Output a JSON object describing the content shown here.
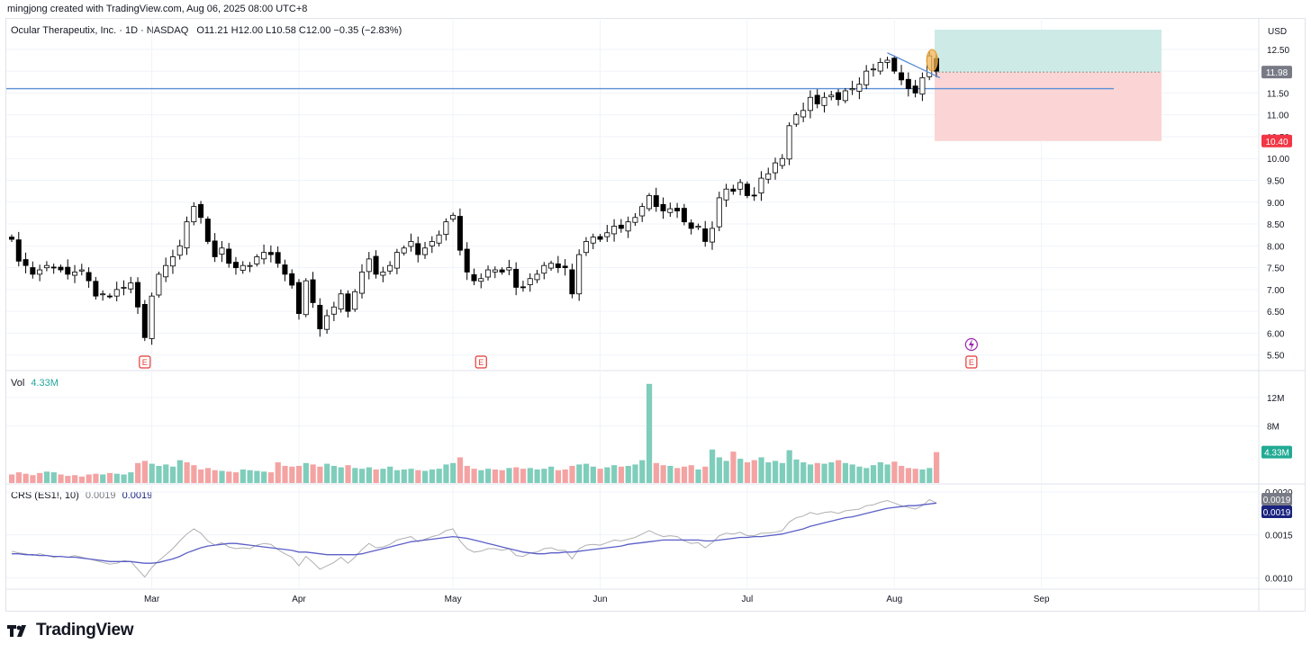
{
  "credit": "mingjong created with TradingView.com, Aug 06, 2025 08:00 UTC+8",
  "header": {
    "symbol": "Ocular Therapeutix, Inc. · 1D · NASDAQ",
    "ohlc": "O11.21  H12.00  L10.58  C12.00  −0.35 (−2.83%)"
  },
  "currency": "USD",
  "price_badges": {
    "current": "11.98",
    "stop": "10.40"
  },
  "volume_legend": {
    "label": "Vol",
    "value": "4.33M",
    "badge": "4.33M"
  },
  "crs_legend": {
    "label": "CRS (ES1!, 10)",
    "v1": "0.0019",
    "v2": "0.0019",
    "badge1": "0.0019",
    "badge2": "0.0019"
  },
  "event_labels": {
    "earnings": "E"
  },
  "brand": "TradingView",
  "colors": {
    "up": "#ffffff",
    "down": "#000000",
    "vol_up": "#7fcdbb",
    "vol_down": "#f4a3a3",
    "ma": "#5b5fc7",
    "crs": "#b0b0b0",
    "hline": "#5b8fd6",
    "target_zone": "#cdeae6",
    "stop_zone": "#fbd5d5"
  },
  "chart_data": [
    {
      "type": "candlestick",
      "title": "Ocular Therapeutix, Inc. · 1D · NASDAQ",
      "x_ticks": [
        "Mar",
        "Apr",
        "May",
        "Jun",
        "Jul",
        "Aug",
        "Sep"
      ],
      "y_ticks": [
        "12.50",
        "12.00",
        "11.50",
        "11.00",
        "10.50",
        "10.00",
        "9.50",
        "9.00",
        "8.50",
        "8.00",
        "7.50",
        "7.00",
        "6.50",
        "6.00",
        "5.50"
      ],
      "ylim": [
        5.35,
        12.95
      ],
      "horizontal_line": 11.6,
      "position": {
        "entry": 11.98,
        "target": 12.95,
        "stop": 10.4
      },
      "closes": [
        8.15,
        7.65,
        7.55,
        7.35,
        7.45,
        7.55,
        7.5,
        7.45,
        7.35,
        7.4,
        7.45,
        7.2,
        6.85,
        6.9,
        6.85,
        7.0,
        7.05,
        7.15,
        6.6,
        5.9,
        6.85,
        7.35,
        7.55,
        7.75,
        8.0,
        8.55,
        8.9,
        8.65,
        8.1,
        7.75,
        7.95,
        7.6,
        7.5,
        7.55,
        7.55,
        7.75,
        7.85,
        7.8,
        7.6,
        7.35,
        7.1,
        6.45,
        7.2,
        6.7,
        6.1,
        6.4,
        6.6,
        6.9,
        6.5,
        6.95,
        7.4,
        7.7,
        7.35,
        7.4,
        7.55,
        7.85,
        7.95,
        8.1,
        7.8,
        7.95,
        8.1,
        8.25,
        8.55,
        8.7,
        7.9,
        7.4,
        7.2,
        7.25,
        7.45,
        7.45,
        7.4,
        7.5,
        7.05,
        7.05,
        7.25,
        7.35,
        7.55,
        7.6,
        7.5,
        7.5,
        6.9,
        7.8,
        8.1,
        8.2,
        8.15,
        8.3,
        8.45,
        8.4,
        8.55,
        8.65,
        8.9,
        9.15,
        8.9,
        8.8,
        8.85,
        8.8,
        8.55,
        8.4,
        8.45,
        8.1,
        8.4,
        9.1,
        9.3,
        9.25,
        9.45,
        9.15,
        9.15,
        9.55,
        9.65,
        9.9,
        10.0,
        10.75,
        11.0,
        11.1,
        11.4,
        11.25,
        11.4,
        11.45,
        11.35,
        11.55,
        11.6,
        11.7,
        12.0,
        12.05,
        12.2,
        12.25,
        12.0,
        11.8,
        11.6,
        11.5,
        11.85,
        12.35,
        12.0
      ],
      "event_markers": [
        {
          "label": "E",
          "date": "Feb 28"
        },
        {
          "label": "E",
          "date": "May 01"
        },
        {
          "label": "E",
          "date": "Aug 04"
        }
      ]
    },
    {
      "type": "bar",
      "title": "Vol",
      "y_ticks": [
        "12M",
        "8M"
      ],
      "ylim": [
        0,
        14
      ],
      "last": "4.33M",
      "values": [
        1.2,
        1.5,
        1.3,
        1.1,
        1.4,
        1.6,
        1.5,
        1.2,
        1.0,
        1.1,
        0.9,
        1.2,
        1.3,
        1.2,
        1.4,
        1.3,
        1.2,
        1.5,
        2.8,
        3.1,
        2.7,
        2.4,
        2.6,
        2.3,
        3.2,
        2.9,
        2.5,
        1.9,
        2.1,
        1.8,
        1.7,
        1.6,
        1.5,
        1.9,
        1.8,
        1.7,
        1.6,
        1.5,
        2.9,
        2.4,
        2.3,
        2.4,
        2.8,
        2.6,
        2.3,
        2.7,
        2.4,
        2.2,
        2.5,
        2.1,
        2.0,
        2.2,
        1.9,
        2.0,
        2.3,
        1.8,
        1.9,
        2.0,
        1.8,
        1.7,
        1.9,
        2.0,
        2.6,
        2.8,
        3.6,
        2.4,
        2.0,
        1.8,
        2.0,
        1.9,
        1.8,
        2.1,
        2.2,
        2.0,
        2.1,
        1.9,
        2.0,
        2.3,
        1.8,
        1.9,
        2.4,
        2.6,
        2.7,
        2.3,
        2.0,
        2.2,
        2.5,
        2.3,
        2.4,
        2.6,
        3.2,
        13.9,
        2.8,
        2.5,
        2.4,
        2.1,
        2.3,
        2.5,
        1.9,
        2.3,
        4.7,
        3.6,
        3.1,
        4.4,
        3.4,
        2.9,
        3.2,
        3.6,
        2.9,
        3.1,
        2.8,
        4.6,
        3.3,
        2.9,
        2.6,
        2.8,
        2.7,
        2.9,
        3.2,
        2.8,
        2.6,
        2.3,
        2.1,
        2.5,
        2.9,
        2.6,
        3.0,
        2.4,
        2.1,
        2.0,
        1.9,
        2.1,
        4.33
      ],
      "vol_up": [
        false,
        false,
        false,
        false,
        false,
        true,
        true,
        false,
        false,
        false,
        false,
        false,
        false,
        true,
        false,
        true,
        true,
        true,
        false,
        false,
        true,
        true,
        true,
        true,
        true,
        false,
        false,
        false,
        false,
        false,
        true,
        false,
        false,
        true,
        true,
        true,
        true,
        false,
        false,
        false,
        false,
        false,
        true,
        false,
        false,
        true,
        true,
        true,
        false,
        true,
        true,
        true,
        false,
        true,
        true,
        true,
        true,
        true,
        false,
        true,
        true,
        true,
        true,
        true,
        false,
        false,
        false,
        true,
        true,
        false,
        false,
        true,
        false,
        false,
        true,
        true,
        true,
        true,
        false,
        false,
        false,
        true,
        true,
        true,
        false,
        true,
        true,
        false,
        true,
        true,
        true,
        true,
        false,
        false,
        true,
        false,
        false,
        false,
        true,
        false,
        true,
        true,
        true,
        false,
        true,
        false,
        false,
        true,
        true,
        true,
        true,
        true,
        true,
        true,
        true,
        false,
        true,
        true,
        false,
        true,
        true,
        true,
        true,
        true,
        true,
        true,
        false,
        false,
        false,
        false,
        true,
        true,
        false
      ]
    },
    {
      "type": "line",
      "title": "CRS (ES1!, 10)",
      "y_ticks": [
        "0.0020",
        "0.0015",
        "0.0010"
      ],
      "ylim": [
        0.0009,
        0.00202
      ],
      "series": [
        {
          "values": [
            0.00131,
            0.00129,
            0.00128,
            0.00126,
            0.00128,
            0.00126,
            0.00124,
            0.00125,
            0.00124,
            0.00126,
            0.00124,
            0.00122,
            0.0012,
            0.00118,
            0.00116,
            0.00117,
            0.0012,
            0.00119,
            0.0011,
            0.00101,
            0.00112,
            0.0012,
            0.00127,
            0.00134,
            0.00143,
            0.00151,
            0.00157,
            0.00152,
            0.00143,
            0.00138,
            0.00141,
            0.00136,
            0.00134,
            0.00135,
            0.00134,
            0.00138,
            0.0014,
            0.00139,
            0.00133,
            0.00128,
            0.00124,
            0.00114,
            0.00125,
            0.00118,
            0.0011,
            0.00114,
            0.00118,
            0.00124,
            0.00117,
            0.00124,
            0.00133,
            0.0014,
            0.00135,
            0.00136,
            0.00139,
            0.00144,
            0.00146,
            0.00148,
            0.00142,
            0.00145,
            0.00148,
            0.0015,
            0.00155,
            0.00157,
            0.00143,
            0.00134,
            0.0013,
            0.00131,
            0.00134,
            0.00134,
            0.00132,
            0.00134,
            0.00126,
            0.00125,
            0.00129,
            0.0013,
            0.00134,
            0.00135,
            0.00132,
            0.00132,
            0.00122,
            0.00134,
            0.00138,
            0.00139,
            0.00138,
            0.00141,
            0.00144,
            0.00143,
            0.00145,
            0.00147,
            0.00151,
            0.00155,
            0.00151,
            0.00148,
            0.00149,
            0.00148,
            0.00143,
            0.0014,
            0.00141,
            0.00135,
            0.00141,
            0.00149,
            0.00152,
            0.00151,
            0.00153,
            0.00149,
            0.00149,
            0.00152,
            0.00152,
            0.00153,
            0.00155,
            0.00165,
            0.0017,
            0.00172,
            0.00176,
            0.00174,
            0.00176,
            0.00177,
            0.00175,
            0.00178,
            0.00179,
            0.0018,
            0.00184,
            0.00185,
            0.00188,
            0.0019,
            0.00187,
            0.00184,
            0.00182,
            0.0018,
            0.00184,
            0.00191,
            0.00187
          ]
        },
        {
          "values": [
            0.00128,
            0.00128,
            0.00127,
            0.00127,
            0.00126,
            0.00126,
            0.00125,
            0.00125,
            0.00124,
            0.00124,
            0.00123,
            0.00122,
            0.00121,
            0.0012,
            0.00119,
            0.00119,
            0.00119,
            0.00119,
            0.00118,
            0.00117,
            0.00117,
            0.00118,
            0.0012,
            0.00122,
            0.00125,
            0.00129,
            0.00132,
            0.00135,
            0.00137,
            0.00138,
            0.00139,
            0.0014,
            0.0014,
            0.00139,
            0.00138,
            0.00137,
            0.00136,
            0.00135,
            0.00134,
            0.00133,
            0.00132,
            0.0013,
            0.0013,
            0.00129,
            0.00128,
            0.00127,
            0.00127,
            0.00127,
            0.00127,
            0.00127,
            0.00128,
            0.0013,
            0.00132,
            0.00134,
            0.00136,
            0.00138,
            0.0014,
            0.00142,
            0.00143,
            0.00144,
            0.00145,
            0.00146,
            0.00147,
            0.00148,
            0.00147,
            0.00146,
            0.00144,
            0.00142,
            0.0014,
            0.00138,
            0.00136,
            0.00134,
            0.00132,
            0.0013,
            0.00129,
            0.00128,
            0.00128,
            0.00129,
            0.00129,
            0.0013,
            0.0013,
            0.00131,
            0.00132,
            0.00133,
            0.00134,
            0.00135,
            0.00136,
            0.00137,
            0.00139,
            0.0014,
            0.00141,
            0.00142,
            0.00143,
            0.00144,
            0.00144,
            0.00144,
            0.00144,
            0.00144,
            0.00144,
            0.00143,
            0.00143,
            0.00144,
            0.00145,
            0.00146,
            0.00147,
            0.00147,
            0.00148,
            0.00148,
            0.00149,
            0.0015,
            0.00151,
            0.00153,
            0.00155,
            0.00157,
            0.0016,
            0.00162,
            0.00164,
            0.00166,
            0.00168,
            0.0017,
            0.00171,
            0.00173,
            0.00175,
            0.00177,
            0.00179,
            0.00181,
            0.00182,
            0.00183,
            0.00184,
            0.00184,
            0.00185,
            0.00186,
            0.00187
          ]
        }
      ]
    }
  ]
}
